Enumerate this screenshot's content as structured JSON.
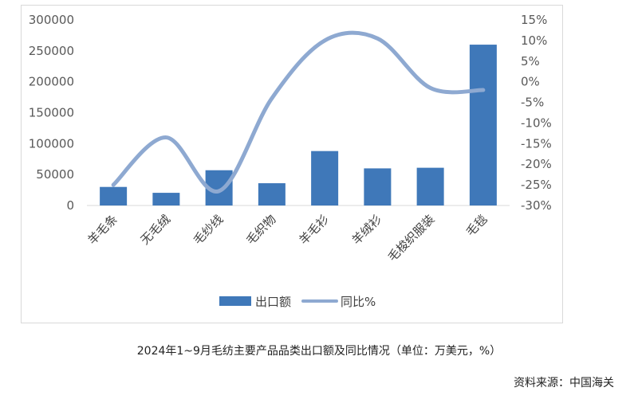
{
  "chart_data": {
    "type": "bar",
    "categories": [
      "羊毛条",
      "无毛绒",
      "毛纱线",
      "毛织物",
      "羊毛衫",
      "羊绒衫",
      "毛梭织服装",
      "毛毯"
    ],
    "series": [
      {
        "name": "出口额",
        "type": "bar",
        "axis": "left",
        "values": [
          30000,
          20500,
          57000,
          36000,
          88000,
          60000,
          61000,
          260000
        ],
        "color": "#3f78b9"
      },
      {
        "name": "同比%",
        "type": "line",
        "axis": "right",
        "values": [
          -25,
          -13.5,
          -26.5,
          -4,
          10,
          10.5,
          -1.5,
          -2
        ],
        "color": "#8ea9d1"
      }
    ],
    "y_left": {
      "min": 0,
      "max": 300000,
      "ticks": [
        "300000",
        "250000",
        "200000",
        "150000",
        "100000",
        "50000",
        "0"
      ]
    },
    "y_right": {
      "min": -30,
      "max": 15,
      "ticks": [
        "15%",
        "10%",
        "5%",
        "0%",
        "-5%",
        "-10%",
        "-15%",
        "-20%",
        "-25%",
        "-30%"
      ]
    },
    "legend": {
      "placement": "bottom",
      "items": [
        "出口额",
        "同比%"
      ]
    },
    "grid": false
  },
  "caption": "2024年1~9月毛纺主要产品品类出口额及同比情况（单位：万美元，%）",
  "source": "资料来源：中国海关"
}
